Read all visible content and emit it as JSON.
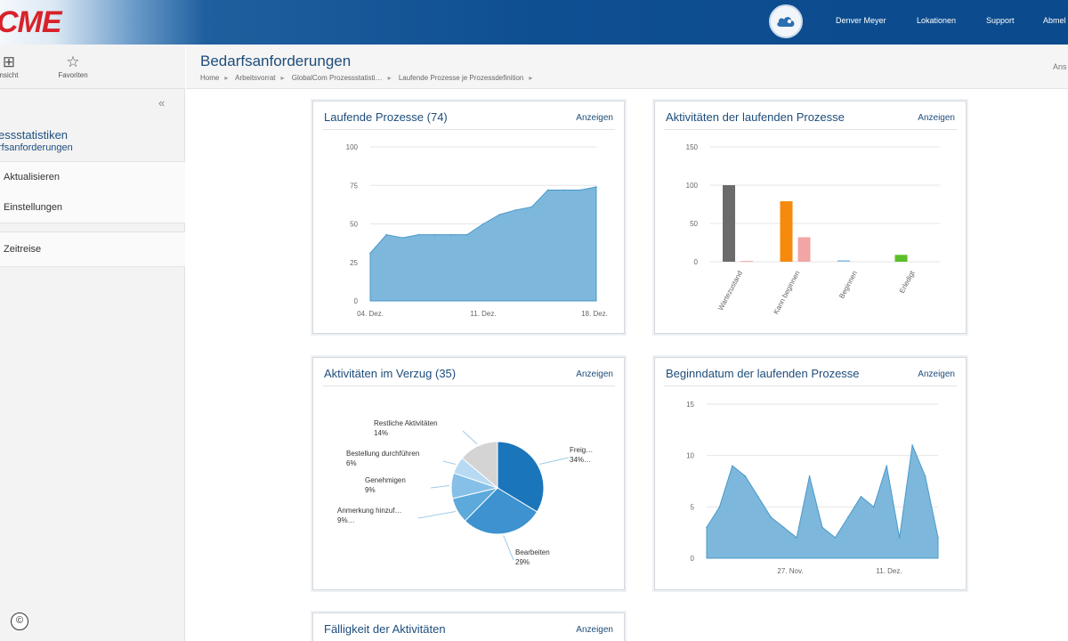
{
  "brand": {
    "logo_text": "CME",
    "logo_color": "#d8222a"
  },
  "topnav": {
    "user": "Denver Meyer",
    "locations": "Lokationen",
    "support": "Support",
    "logout": "Abmel"
  },
  "sidebar": {
    "tool_view_label": "nsicht",
    "tool_favorites_label": "Favoriten",
    "title": "essstatistiken",
    "subtitle": "rfsanforderungen",
    "menu": [
      {
        "label": "Aktualisieren"
      },
      {
        "label": "Einstellungen"
      }
    ],
    "timetravel": "Zeitreise",
    "copyright": "©"
  },
  "header": {
    "title": "Bedarfsanforderungen",
    "right_text": "Ans",
    "breadcrumb": [
      "Home",
      "Arbeitsvorrat",
      "GlobalCom Prozessstatisti…",
      "Laufende Prozesse je Prozessdefinition"
    ]
  },
  "colors": {
    "accent": "#1e4d7b",
    "area_fill": "#7db8dc",
    "area_stroke": "#4a98c9"
  },
  "widgets": {
    "w1": {
      "title": "Laufende Prozesse (74)",
      "link": "Anzeigen"
    },
    "w2": {
      "title": "Aktivitäten der laufenden Prozesse",
      "link": "Anzeigen"
    },
    "w3": {
      "title": "Aktivitäten im Verzug (35)",
      "link": "Anzeigen"
    },
    "w4": {
      "title": "Beginndatum der laufenden Prozesse",
      "link": "Anzeigen"
    },
    "w5": {
      "title": "Fälligkeit der Aktivitäten",
      "link": "Anzeigen"
    }
  },
  "chart_data": [
    {
      "type": "area",
      "title": "Laufende Prozesse (74)",
      "ylim": [
        0,
        100
      ],
      "yticks": [
        0,
        25,
        50,
        75,
        100
      ],
      "xticks": [
        "04. Dez.",
        "11. Dez.",
        "18. Dez."
      ],
      "values": [
        31,
        43,
        41,
        43,
        43,
        43,
        43,
        50,
        56,
        59,
        61,
        72,
        72,
        72,
        74
      ],
      "grid": true,
      "color": "#7db8dc"
    },
    {
      "type": "bar",
      "title": "Aktivitäten der laufenden Prozesse",
      "categories": [
        "Wartezustand",
        "Kann beginnen",
        "Beginnen",
        "Erledigt"
      ],
      "ylim": [
        0,
        150
      ],
      "yticks": [
        0,
        50,
        100,
        150
      ],
      "bars": [
        {
          "category": "Wartezustand",
          "value": 100,
          "color": "#6b6b6b"
        },
        {
          "category": "Wartezustand",
          "value": 1,
          "color": "#f2a5a5"
        },
        {
          "category": "Kann beginnen",
          "value": 79,
          "color": "#f58a0c"
        },
        {
          "category": "Kann beginnen",
          "value": 32,
          "color": "#f2a5a5"
        },
        {
          "category": "Beginnen",
          "value": 2,
          "color": "#8fc3e6"
        },
        {
          "category": "Erledigt",
          "value": 9,
          "color": "#5bbf2a"
        }
      ],
      "grid": true
    },
    {
      "type": "pie",
      "title": "Aktivitäten im Verzug (35)",
      "slices": [
        {
          "label": "Freig…",
          "percent": "34%…",
          "value": 34,
          "color": "#1b75bb"
        },
        {
          "label": "Bearbeiten",
          "percent": "29%",
          "value": 29,
          "color": "#3d92cf"
        },
        {
          "label": "Anmerkung hinzuf…",
          "percent": "9%…",
          "value": 9,
          "color": "#5da9dc"
        },
        {
          "label": "Genehmigen",
          "percent": "9%",
          "value": 9,
          "color": "#86c0e8"
        },
        {
          "label": "Bestellung durchführen",
          "percent": "6%",
          "value": 6,
          "color": "#b7daf2"
        },
        {
          "label": "Restliche Aktivitäten",
          "percent": "14%",
          "value": 14,
          "color": "#d4d4d4"
        }
      ]
    },
    {
      "type": "area",
      "title": "Beginndatum der laufenden Prozesse",
      "ylim": [
        0,
        15
      ],
      "yticks": [
        0,
        5,
        10,
        15
      ],
      "xticks": [
        "27. Nov.",
        "11. Dez."
      ],
      "values": [
        3,
        5,
        9,
        8,
        6,
        4,
        3,
        2,
        8,
        3,
        2,
        4,
        6,
        5,
        9,
        2,
        11,
        8,
        2
      ],
      "grid": true,
      "color": "#7db8dc"
    }
  ]
}
